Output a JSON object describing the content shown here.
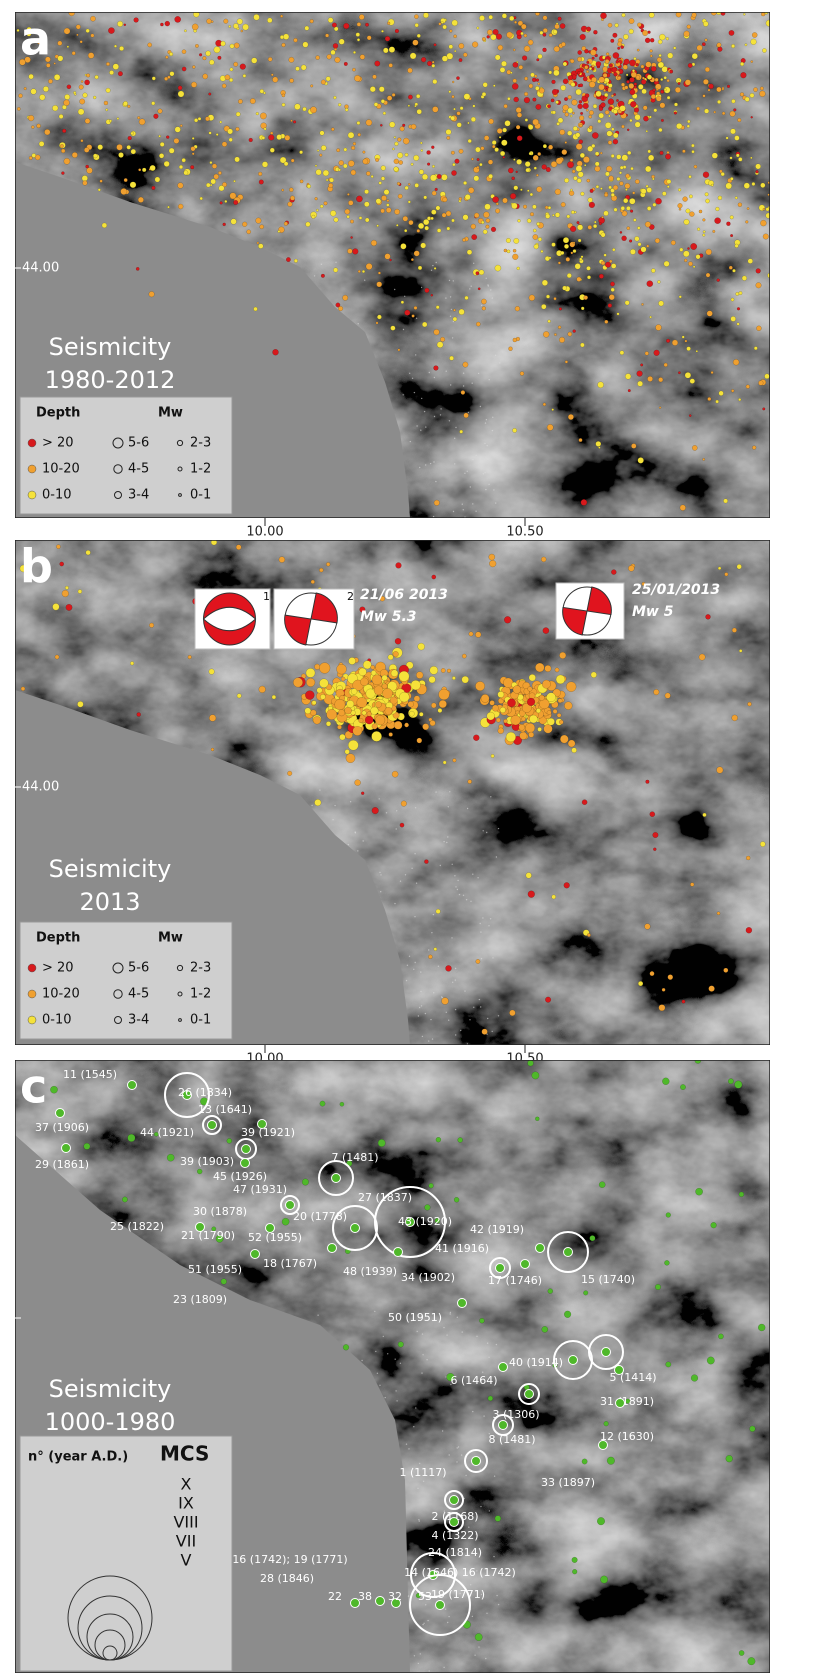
{
  "panels": [
    {
      "letter": "a",
      "title": "Seismicity",
      "period": "1980-2012",
      "latitude_label": "44.00",
      "longitude_labels": [
        "10.00",
        "10.50"
      ],
      "legend": {
        "depth_heading": "Depth",
        "magnitude_heading": "Mw",
        "depth_classes": [
          "> 20",
          "10-20",
          "0-10"
        ],
        "magnitude_classes": [
          "5-6",
          "4-5",
          "3-4",
          "2-3",
          "1-2",
          "0-1"
        ]
      }
    },
    {
      "letter": "b",
      "title": "Seismicity",
      "period": "2013",
      "latitude_label": "44.00",
      "longitude_labels": [
        "10.00",
        "10.50"
      ],
      "legend": {
        "depth_heading": "Depth",
        "magnitude_heading": "Mw",
        "depth_classes": [
          "> 20",
          "10-20",
          "0-10"
        ],
        "magnitude_classes": [
          "5-6",
          "4-5",
          "3-4",
          "2-3",
          "1-2",
          "0-1"
        ]
      },
      "focal_mechanisms": [
        "1",
        "2"
      ],
      "events": [
        {
          "date": "21/06 2013",
          "magnitude": "Mw 5.3"
        },
        {
          "date": "25/01/2013",
          "magnitude": "Mw 5"
        }
      ]
    },
    {
      "letter": "c",
      "title": "Seismicity",
      "period": "1000-1980",
      "legend": {
        "heading": "n° (year A.D.)",
        "scale": "MCS",
        "intensities": [
          "X",
          "IX",
          "VIII",
          "VII",
          "V"
        ]
      },
      "earthquakes": [
        "11 (1545)",
        "26 (1834)",
        "13 (1641)",
        "37 (1906)",
        "44 (1921)",
        "39 (1921)",
        "29 (1861)",
        "39 (1903)",
        "7 (1481)",
        "45 (1926)",
        "47 (1931)",
        "27 (1837)",
        "30 (1878)",
        "20 (1778)",
        "43 (1920)",
        "42 (1919)",
        "25 (1822)",
        "21 (1790)",
        "52 (1955)",
        "41 (1916)",
        "18 (1767)",
        "48 (1939)",
        "34 (1902)",
        "17 (1746)",
        "15 (1740)",
        "51 (1955)",
        "23 (1809)",
        "50 (1951)",
        "40 (1914)",
        "5 (1414)",
        "6 (1464)",
        "31 (1891)",
        "3 (1306)",
        "12 (1630)",
        "8 (1481)",
        "1 (1117)",
        "33 (1897)",
        "2 (1168)",
        "4 (1322)",
        "24 (1814)",
        "16 (1742); 19 (1771)",
        "14 (1646) 16 (1742)",
        "28 (1846)",
        "19 (1771)",
        "22",
        "38",
        "32",
        "53"
      ]
    }
  ]
}
